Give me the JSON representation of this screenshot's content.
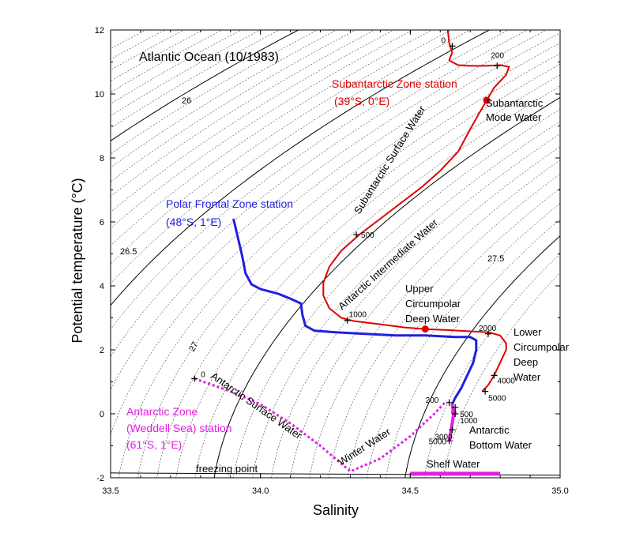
{
  "chart_data": {
    "type": "line",
    "title": "Atlantic Ocean (10/1983)",
    "xlabel": "Salinity",
    "ylabel": "Potential temperature (°C)",
    "xlim": [
      33.5,
      35.0
    ],
    "ylim": [
      -2,
      12
    ],
    "x_ticks": [
      "33.5",
      "34.0",
      "34.5",
      "35.0"
    ],
    "y_ticks": [
      "-2",
      "0",
      "2",
      "4",
      "6",
      "8",
      "10",
      "12"
    ],
    "isopycnal_labels": [
      "26",
      "26.5",
      "27",
      "27.5"
    ],
    "series": [
      {
        "name": "Subantarctic Zone station",
        "color": "#e00000",
        "points": [
          [
            34.625,
            12.0
          ],
          [
            34.63,
            11.6
          ],
          [
            34.64,
            11.3
          ],
          [
            34.63,
            11.05
          ],
          [
            34.66,
            10.9
          ],
          [
            34.7,
            10.88
          ],
          [
            34.75,
            10.88
          ],
          [
            34.8,
            10.9
          ],
          [
            34.83,
            10.85
          ],
          [
            34.82,
            10.6
          ],
          [
            34.78,
            10.2
          ],
          [
            34.755,
            9.8
          ],
          [
            34.73,
            9.4
          ],
          [
            34.7,
            8.9
          ],
          [
            34.66,
            8.2
          ],
          [
            34.6,
            7.6
          ],
          [
            34.54,
            7.1
          ],
          [
            34.47,
            6.6
          ],
          [
            34.4,
            6.1
          ],
          [
            34.33,
            5.6
          ],
          [
            34.27,
            5.1
          ],
          [
            34.23,
            4.6
          ],
          [
            34.21,
            4.1
          ],
          [
            34.21,
            3.7
          ],
          [
            34.23,
            3.3
          ],
          [
            34.27,
            3.0
          ],
          [
            34.31,
            2.9
          ],
          [
            34.4,
            2.8
          ],
          [
            34.48,
            2.7
          ],
          [
            34.55,
            2.65
          ],
          [
            34.62,
            2.62
          ],
          [
            34.7,
            2.58
          ],
          [
            34.76,
            2.55
          ],
          [
            34.8,
            2.45
          ],
          [
            34.82,
            2.2
          ],
          [
            34.82,
            2.0
          ],
          [
            34.8,
            1.6
          ],
          [
            34.78,
            1.2
          ],
          [
            34.76,
            0.9
          ],
          [
            34.74,
            0.7
          ]
        ]
      },
      {
        "name": "Polar Frontal Zone station",
        "color": "#2020e0",
        "points": [
          [
            33.91,
            6.1
          ],
          [
            33.92,
            5.7
          ],
          [
            33.93,
            5.3
          ],
          [
            33.94,
            4.9
          ],
          [
            33.95,
            4.4
          ],
          [
            33.97,
            4.05
          ],
          [
            34.0,
            3.9
          ],
          [
            34.06,
            3.75
          ],
          [
            34.1,
            3.6
          ],
          [
            34.135,
            3.45
          ],
          [
            34.14,
            3.1
          ],
          [
            34.15,
            2.75
          ],
          [
            34.18,
            2.6
          ],
          [
            34.25,
            2.55
          ],
          [
            34.35,
            2.5
          ],
          [
            34.45,
            2.45
          ],
          [
            34.55,
            2.45
          ],
          [
            34.65,
            2.4
          ],
          [
            34.7,
            2.4
          ],
          [
            34.72,
            2.3
          ],
          [
            34.72,
            2.0
          ],
          [
            34.71,
            1.6
          ],
          [
            34.69,
            1.2
          ],
          [
            34.67,
            0.8
          ],
          [
            34.65,
            0.5
          ],
          [
            34.64,
            0.3
          ]
        ]
      },
      {
        "name": "Antarctic Zone (Weddell Sea) station",
        "color": "#e020e0",
        "dashed": true,
        "points": [
          [
            33.78,
            1.1
          ],
          [
            33.9,
            0.7
          ],
          [
            34.0,
            0.3
          ],
          [
            34.1,
            -0.3
          ],
          [
            34.2,
            -1.0
          ],
          [
            34.3,
            -1.8
          ],
          [
            34.4,
            -1.4
          ],
          [
            34.5,
            -0.7
          ],
          [
            34.58,
            0.0
          ],
          [
            34.62,
            0.4
          ]
        ]
      },
      {
        "name": "Antarctic Zone (Weddell Sea) station deep",
        "color": "#e020e0",
        "dashed": false,
        "points": [
          [
            34.64,
            0.3
          ],
          [
            34.645,
            0.0
          ],
          [
            34.64,
            -0.3
          ],
          [
            34.635,
            -0.6
          ],
          [
            34.63,
            -0.85
          ]
        ]
      }
    ],
    "freezing_point_line": [
      [
        33.5,
        -1.85
      ],
      [
        35.0,
        -1.92
      ]
    ],
    "shelf_water_bar": {
      "x": [
        34.5,
        34.8
      ],
      "y": -1.85,
      "color": "#e020e0"
    },
    "depth_markers": [
      {
        "label": "0",
        "x": 34.64,
        "y": 11.5
      },
      {
        "label": "200",
        "x": 34.79,
        "y": 10.88
      },
      {
        "label": "500",
        "x": 34.32,
        "y": 5.6
      },
      {
        "label": "1000",
        "x": 34.29,
        "y": 2.92
      },
      {
        "label": "2000",
        "x": 34.76,
        "y": 2.5
      },
      {
        "label": "4000",
        "x": 34.78,
        "y": 1.2
      },
      {
        "label": "5000",
        "x": 34.75,
        "y": 0.7
      },
      {
        "label": "0",
        "x": 33.78,
        "y": 1.1
      },
      {
        "label": "200",
        "x": 34.63,
        "y": 0.35
      },
      {
        "label": "500",
        "x": 34.65,
        "y": 0.2
      },
      {
        "label": "1000",
        "x": 34.65,
        "y": 0.0
      },
      {
        "label": "3000",
        "x": 34.64,
        "y": -0.5
      },
      {
        "label": "5000",
        "x": 34.63,
        "y": -0.85
      }
    ],
    "annotations": [
      {
        "text": "Subantarctic Zone station",
        "color": "red"
      },
      {
        "text": "(39°S, 0°E)",
        "color": "red"
      },
      {
        "text": "Subantarctic",
        "color": "black"
      },
      {
        "text": "Mode Water",
        "color": "black"
      },
      {
        "text": "Subantarctic Surface Water",
        "color": "black"
      },
      {
        "text": "Polar Frontal Zone station",
        "color": "blue"
      },
      {
        "text": "(48°S, 1°E)",
        "color": "blue"
      },
      {
        "text": "Antarctic Intermediate Water",
        "color": "black"
      },
      {
        "text": "Upper",
        "color": "black"
      },
      {
        "text": "Circumpolar",
        "color": "black"
      },
      {
        "text": "Deep Water",
        "color": "black"
      },
      {
        "text": "Lower",
        "color": "black"
      },
      {
        "text": "Circumpolar",
        "color": "black"
      },
      {
        "text": "Deep",
        "color": "black"
      },
      {
        "text": "Water",
        "color": "black"
      },
      {
        "text": "Antarctic Surface Water",
        "color": "black"
      },
      {
        "text": "Winter Water",
        "color": "black"
      },
      {
        "text": "Antarctic",
        "color": "black"
      },
      {
        "text": "Bottom Water",
        "color": "black"
      },
      {
        "text": "Antarctic Zone",
        "color": "magenta"
      },
      {
        "text": "(Weddell Sea) station",
        "color": "magenta"
      },
      {
        "text": "(61°S, 1°E)",
        "color": "magenta"
      },
      {
        "text": "freezing point",
        "color": "black"
      },
      {
        "text": "Shelf Water",
        "color": "black"
      }
    ]
  }
}
